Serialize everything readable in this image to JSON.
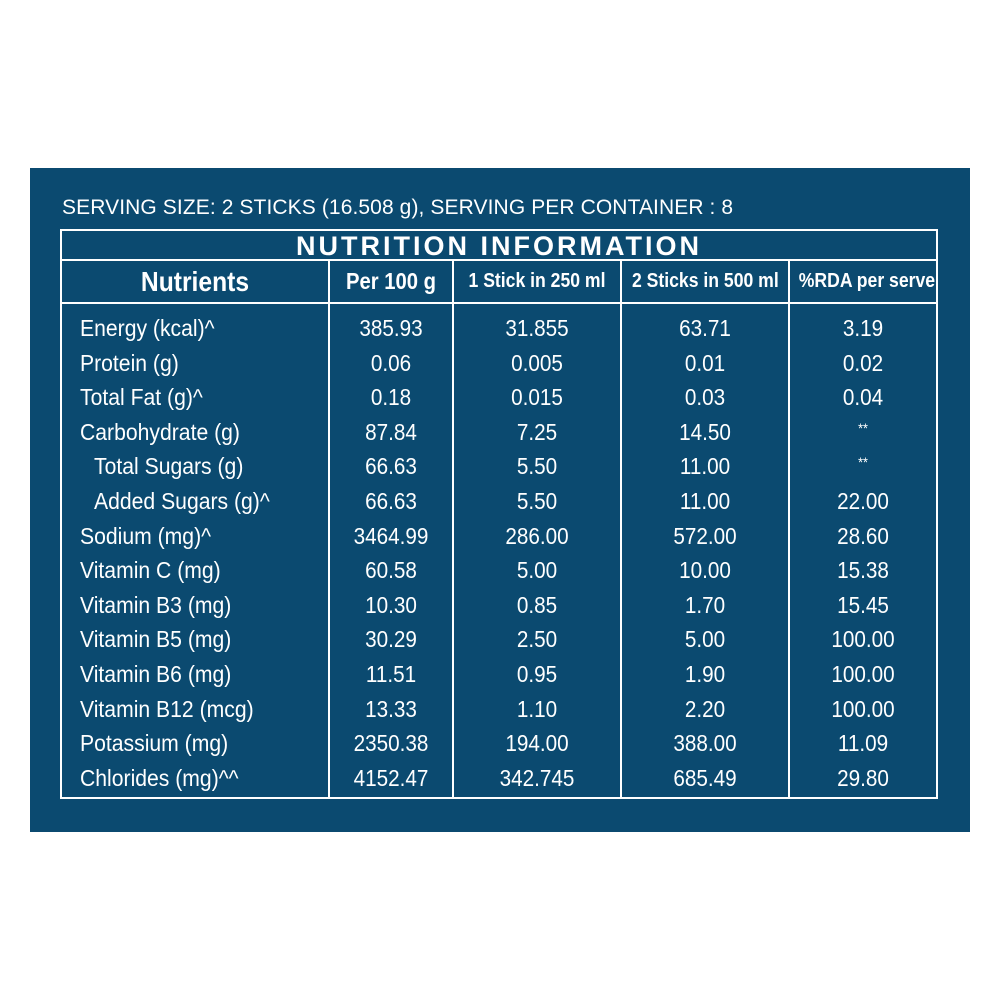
{
  "serving_info": "SERVING SIZE: 2 STICKS (16.508 g), SERVING PER CONTAINER : 8",
  "title": "NUTRITION INFORMATION",
  "columns": [
    "Nutrients",
    "Per 100 g",
    "1 Stick in 250 ml",
    "2 Sticks in 500 ml",
    "%RDA per serve"
  ],
  "rows": [
    {
      "name": "Energy (kcal)^",
      "per100": "385.93",
      "stick1": "31.855",
      "sticks2": "63.71",
      "rda": "3.19"
    },
    {
      "name": "Protein (g)",
      "per100": "0.06",
      "stick1": "0.005",
      "sticks2": "0.01",
      "rda": "0.02"
    },
    {
      "name": "Total Fat (g)^",
      "per100": "0.18",
      "stick1": "0.015",
      "sticks2": "0.03",
      "rda": "0.04"
    },
    {
      "name": "Carbohydrate (g)",
      "per100": "87.84",
      "stick1": "7.25",
      "sticks2": "14.50",
      "rda": "**"
    },
    {
      "name": "Total Sugars (g)",
      "per100": "66.63",
      "stick1": "5.50",
      "sticks2": "11.00",
      "rda": "**",
      "indent": true
    },
    {
      "name": "Added Sugars (g)^",
      "per100": "66.63",
      "stick1": "5.50",
      "sticks2": "11.00",
      "rda": "22.00",
      "indent": true
    },
    {
      "name": "Sodium (mg)^",
      "per100": "3464.99",
      "stick1": "286.00",
      "sticks2": "572.00",
      "rda": "28.60"
    },
    {
      "name": "Vitamin C (mg)",
      "per100": "60.58",
      "stick1": "5.00",
      "sticks2": "10.00",
      "rda": "15.38"
    },
    {
      "name": "Vitamin B3 (mg)",
      "per100": "10.30",
      "stick1": "0.85",
      "sticks2": "1.70",
      "rda": "15.45"
    },
    {
      "name": "Vitamin B5 (mg)",
      "per100": "30.29",
      "stick1": "2.50",
      "sticks2": "5.00",
      "rda": "100.00"
    },
    {
      "name": "Vitamin B6 (mg)",
      "per100": "11.51",
      "stick1": "0.95",
      "sticks2": "1.90",
      "rda": "100.00"
    },
    {
      "name": "Vitamin B12 (mcg)",
      "per100": "13.33",
      "stick1": "1.10",
      "sticks2": "2.20",
      "rda": "100.00"
    },
    {
      "name": "Potassium (mg)",
      "per100": "2350.38",
      "stick1": "194.00",
      "sticks2": "388.00",
      "rda": "11.09"
    },
    {
      "name": "Chlorides (mg)^^",
      "per100": "4152.47",
      "stick1": "342.745",
      "sticks2": "685.49",
      "rda": "29.80"
    }
  ],
  "colors": {
    "background": "#0b4a70",
    "text": "#ffffff"
  }
}
